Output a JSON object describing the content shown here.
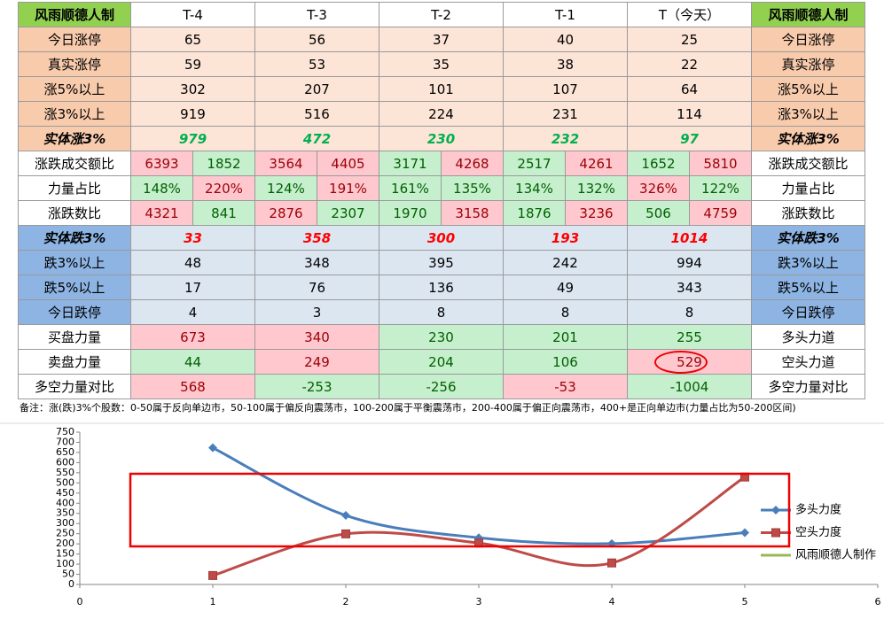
{
  "table": {
    "header": [
      "风雨顺德人制",
      "T-4",
      "T-3",
      "T-2",
      "T-1",
      "T（今天）",
      "风雨顺德人制"
    ],
    "header_fill": [
      "#92d050",
      "#ffffff",
      "#ffffff",
      "#ffffff",
      "#ffffff",
      "#ffffff",
      "#92d050"
    ],
    "rows": [
      {
        "label": "今日涨停",
        "right": "今日涨停",
        "values": [
          "65",
          "56",
          "37",
          "40",
          "25"
        ],
        "label_fill": "#f8cbad",
        "fill": "#fce4d6",
        "ink": "#000000"
      },
      {
        "label": "真实涨停",
        "right": "真实涨停",
        "values": [
          "59",
          "53",
          "35",
          "38",
          "22"
        ],
        "label_fill": "#f8cbad",
        "fill": "#fce4d6",
        "ink": "#000000"
      },
      {
        "label": "涨5%以上",
        "right": "涨5%以上",
        "values": [
          "302",
          "207",
          "101",
          "107",
          "64"
        ],
        "label_fill": "#f8cbad",
        "fill": "#fce4d6",
        "ink": "#000000"
      },
      {
        "label": "涨3%以上",
        "right": "涨3%以上",
        "values": [
          "919",
          "516",
          "224",
          "231",
          "114"
        ],
        "label_fill": "#f8cbad",
        "fill": "#fce4d6",
        "ink": "#000000"
      },
      {
        "label": "实体涨3%",
        "right": "实体涨3%",
        "values": [
          "979",
          "472",
          "230",
          "232",
          "97"
        ],
        "label_fill": "#f8cbad",
        "fill": "#fce4d6",
        "ink": "#00b050",
        "italic": true
      },
      {
        "label": "涨跌成交额比",
        "right": "涨跌成交额比",
        "values": [
          [
            "6393",
            "1852"
          ],
          [
            "3564",
            "4405"
          ],
          [
            "3171",
            "4268"
          ],
          [
            "2517",
            "4261"
          ],
          [
            "1652",
            "5810"
          ]
        ],
        "label_fill": "#ffffff",
        "fill": [
          [
            "#ffc7ce",
            "#c6efce"
          ],
          [
            "#ffc7ce",
            "#ffc7ce"
          ],
          [
            "#c6efce",
            "#ffc7ce"
          ],
          [
            "#c6efce",
            "#ffc7ce"
          ],
          [
            "#c6efce",
            "#ffc7ce"
          ]
        ],
        "ink": [
          [
            "#9c0006",
            "#006100"
          ],
          [
            "#9c0006",
            "#9c0006"
          ],
          [
            "#006100",
            "#9c0006"
          ],
          [
            "#006100",
            "#9c0006"
          ],
          [
            "#006100",
            "#9c0006"
          ]
        ]
      },
      {
        "label": "力量占比",
        "right": "力量占比",
        "values": [
          [
            "148%",
            "220%"
          ],
          [
            "124%",
            "191%"
          ],
          [
            "161%",
            "135%"
          ],
          [
            "134%",
            "132%"
          ],
          [
            "326%",
            "122%"
          ]
        ],
        "label_fill": "#ffffff",
        "fill": [
          [
            "#c6efce",
            "#ffc7ce"
          ],
          [
            "#c6efce",
            "#ffc7ce"
          ],
          [
            "#c6efce",
            "#c6efce"
          ],
          [
            "#c6efce",
            "#c6efce"
          ],
          [
            "#ffc7ce",
            "#c6efce"
          ]
        ],
        "ink": [
          [
            "#006100",
            "#9c0006"
          ],
          [
            "#006100",
            "#9c0006"
          ],
          [
            "#006100",
            "#006100"
          ],
          [
            "#006100",
            "#006100"
          ],
          [
            "#9c0006",
            "#006100"
          ]
        ]
      },
      {
        "label": "涨跌数比",
        "right": "涨跌数比",
        "values": [
          [
            "4321",
            "841"
          ],
          [
            "2876",
            "2307"
          ],
          [
            "1970",
            "3158"
          ],
          [
            "1876",
            "3236"
          ],
          [
            "506",
            "4759"
          ]
        ],
        "label_fill": "#ffffff",
        "fill": [
          [
            "#ffc7ce",
            "#c6efce"
          ],
          [
            "#ffc7ce",
            "#c6efce"
          ],
          [
            "#c6efce",
            "#ffc7ce"
          ],
          [
            "#c6efce",
            "#ffc7ce"
          ],
          [
            "#c6efce",
            "#ffc7ce"
          ]
        ],
        "ink": [
          [
            "#9c0006",
            "#006100"
          ],
          [
            "#9c0006",
            "#006100"
          ],
          [
            "#006100",
            "#9c0006"
          ],
          [
            "#006100",
            "#9c0006"
          ],
          [
            "#006100",
            "#9c0006"
          ]
        ]
      },
      {
        "label": "实体跌3%",
        "right": "实体跌3%",
        "values": [
          "33",
          "358",
          "300",
          "193",
          "1014"
        ],
        "label_fill": "#8db4e2",
        "fill": "#dce6f1",
        "ink": "#ff0000",
        "italic": true
      },
      {
        "label": "跌3%以上",
        "right": "跌3%以上",
        "values": [
          "48",
          "348",
          "395",
          "242",
          "994"
        ],
        "label_fill": "#8db4e2",
        "fill": "#dce6f1",
        "ink": "#000000"
      },
      {
        "label": "跌5%以上",
        "right": "跌5%以上",
        "values": [
          "17",
          "76",
          "136",
          "49",
          "343"
        ],
        "label_fill": "#8db4e2",
        "fill": "#dce6f1",
        "ink": "#000000"
      },
      {
        "label": "今日跌停",
        "right": "今日跌停",
        "values": [
          "4",
          "3",
          "8",
          "8",
          "8"
        ],
        "label_fill": "#8db4e2",
        "fill": "#dce6f1",
        "ink": "#000000"
      },
      {
        "label": "买盘力量",
        "right": "多头力道",
        "values": [
          "673",
          "340",
          "230",
          "201",
          "255"
        ],
        "label_fill": "#ffffff",
        "fill": [
          "#ffc7ce",
          "#ffc7ce",
          "#c6efce",
          "#c6efce",
          "#c6efce"
        ],
        "ink": [
          "#9c0006",
          "#9c0006",
          "#006100",
          "#006100",
          "#006100"
        ]
      },
      {
        "label": "卖盘力量",
        "right": "空头力道",
        "values": [
          "44",
          "249",
          "204",
          "106",
          "529"
        ],
        "label_fill": "#ffffff",
        "fill": [
          "#c6efce",
          "#ffc7ce",
          "#c6efce",
          "#c6efce",
          "#ffc7ce"
        ],
        "ink": [
          "#006100",
          "#9c0006",
          "#006100",
          "#006100",
          "#9c0006"
        ]
      },
      {
        "label": "多空力量对比",
        "right": "多空力量对比",
        "values": [
          "568",
          "-253",
          "-256",
          "-53",
          "-1004"
        ],
        "label_fill": "#ffffff",
        "fill": [
          "#ffc7ce",
          "#c6efce",
          "#c6efce",
          "#ffc7ce",
          "#c6efce"
        ],
        "ink": [
          "#9c0006",
          "#006100",
          "#006100",
          "#9c0006",
          "#006100"
        ]
      }
    ],
    "note": "备注：涨(跌)3%个股数：0-50属于反向单边市，50-100属于偏反向震荡市，100-200属于平衡震荡市，200-400属于偏正向震荡市，400+是正向单边市(力量占比为50-200区间)"
  },
  "chart_data": {
    "type": "scatter",
    "x": [
      1,
      2,
      3,
      4,
      5
    ],
    "series": [
      {
        "name": "多头力度",
        "color": "#4a7ebb",
        "marker": "diamond",
        "values": [
          673,
          340,
          230,
          201,
          255
        ]
      },
      {
        "name": "空头力度",
        "color": "#be4b48",
        "marker": "square",
        "values": [
          44,
          249,
          204,
          106,
          529
        ]
      },
      {
        "name": "风雨顺德人制作",
        "color": "#98b954",
        "marker": "none",
        "values": [
          null,
          null,
          null,
          null,
          null
        ]
      }
    ],
    "xlim": [
      0,
      6
    ],
    "xticks": [
      0,
      1,
      2,
      3,
      4,
      5,
      6
    ],
    "ylim": [
      0,
      750
    ],
    "yticks": [
      0,
      50,
      100,
      150,
      200,
      250,
      300,
      350,
      400,
      450,
      500,
      550,
      600,
      650,
      700,
      750
    ],
    "smooth": true,
    "grid": false,
    "legend": "right"
  }
}
